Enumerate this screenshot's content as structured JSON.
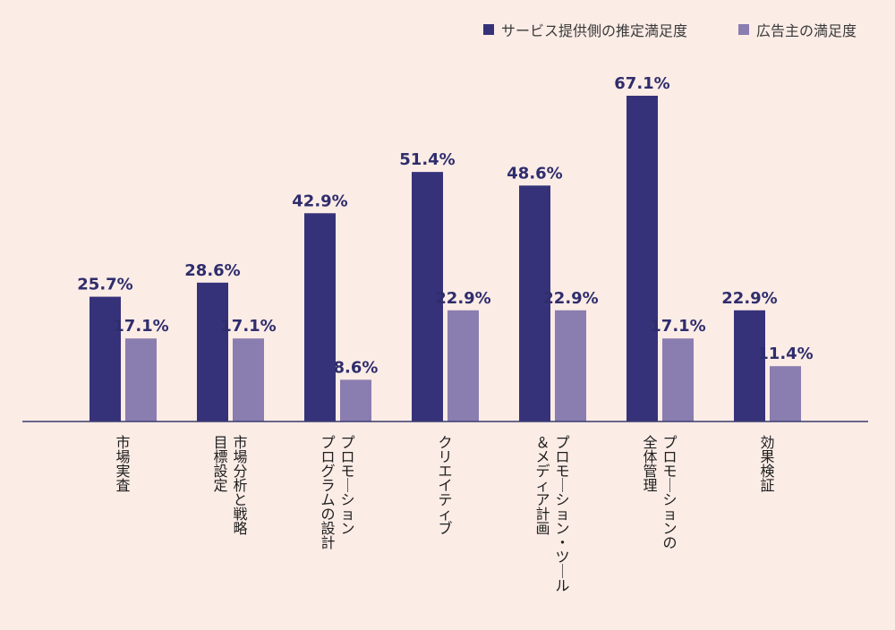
{
  "chart_data": {
    "type": "bar",
    "categories": [
      [
        "市場実査"
      ],
      [
        "市場分析と戦略",
        "目標設定"
      ],
      [
        "プロモーション",
        "プログラムの設計"
      ],
      [
        "クリエイティブ"
      ],
      [
        "プロモーション・ツール",
        "＆メディア計画"
      ],
      [
        "プロモーションの",
        "全体管理"
      ],
      [
        "効果検証"
      ]
    ],
    "series": [
      {
        "name": "サービス提供側の推定満足度",
        "color": "#36327a",
        "values": [
          25.7,
          28.6,
          42.9,
          51.4,
          48.6,
          67.1,
          22.9
        ],
        "labels": [
          "25.7%",
          "28.6%",
          "42.9%",
          "51.4%",
          "48.6%",
          "67.1%",
          "22.9%"
        ]
      },
      {
        "name": "広告主の満足度",
        "color": "#8a7db0",
        "values": [
          17.1,
          17.1,
          8.6,
          22.9,
          22.9,
          17.1,
          11.4
        ],
        "labels": [
          "17.1%",
          "17.1%",
          "8.6%",
          "22.9%",
          "22.9%",
          "17.1%",
          "11.4%"
        ]
      }
    ],
    "ylim": [
      0,
      75
    ],
    "grid": false,
    "legend_position": "top-right",
    "baseline_color": "#3b3b6e"
  }
}
